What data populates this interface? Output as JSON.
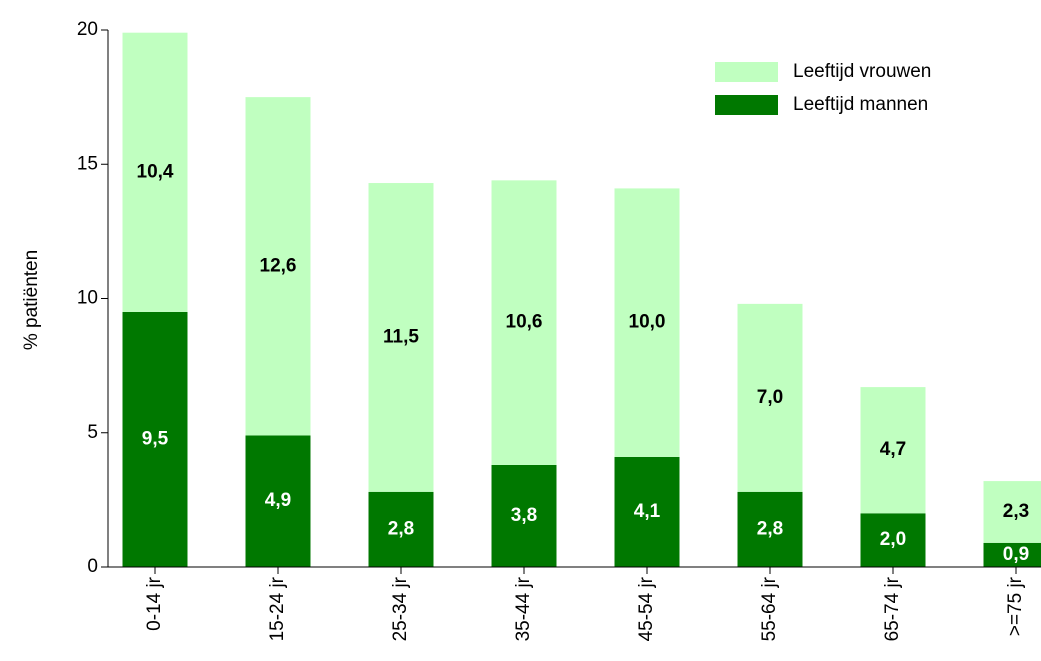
{
  "chart_data": {
    "type": "stacked-bar",
    "y_label": "% patiënten",
    "categories": [
      "0-14 jr",
      "15-24 jr",
      "25-34 jr",
      "35-44 jr",
      "45-54 jr",
      "55-64 jr",
      "65-74 jr",
      ">=75 jr"
    ],
    "series": [
      {
        "name": "Leeftijd mannen",
        "color": "#007800",
        "label_color": "#ffffff",
        "values": [
          9.5,
          4.9,
          2.8,
          3.8,
          4.1,
          2.8,
          2.0,
          0.9
        ],
        "value_labels": [
          "9,5",
          "4,9",
          "2,8",
          "3,8",
          "4,1",
          "2,8",
          "2,0",
          "0,9"
        ]
      },
      {
        "name": "Leeftijd vrouwen",
        "color": "#c0ffc0",
        "label_color": "#000000",
        "values": [
          10.4,
          12.6,
          11.5,
          10.6,
          10.0,
          7.0,
          4.7,
          2.3
        ],
        "value_labels": [
          "10,4",
          "12,6",
          "11,5",
          "10,6",
          "10,0",
          "7,0",
          "4,7",
          "2,3"
        ]
      }
    ],
    "ylim": [
      0,
      20
    ],
    "yticks": [
      0,
      5,
      10,
      15,
      20
    ],
    "grid": false,
    "legend": "top-right"
  }
}
